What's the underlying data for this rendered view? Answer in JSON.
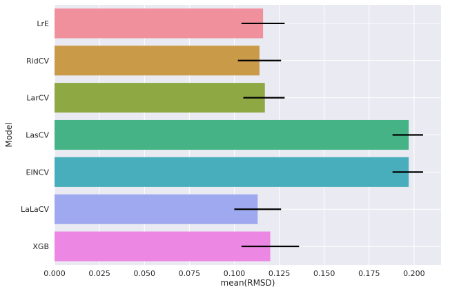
{
  "chart_data": {
    "type": "bar",
    "orientation": "horizontal",
    "title": "",
    "xlabel": "mean(RMSD)",
    "ylabel": "Model",
    "xlim": [
      0.0,
      0.215
    ],
    "xticks": [
      0.0,
      0.025,
      0.05,
      0.075,
      0.1,
      0.125,
      0.15,
      0.175,
      0.2
    ],
    "xtick_labels": [
      "0.000",
      "0.025",
      "0.050",
      "0.075",
      "0.100",
      "0.125",
      "0.150",
      "0.175",
      "0.200"
    ],
    "grid": true,
    "style": "seaborn-darkgrid",
    "background_color": "#eaeaf2",
    "grid_color": "#ffffff",
    "errorbar_color": "#000000",
    "categories": [
      "LrE",
      "RidCV",
      "LarCV",
      "LasCV",
      "ElNCV",
      "LaLaCV",
      "XGB"
    ],
    "values": [
      0.116,
      0.114,
      0.117,
      0.197,
      0.197,
      0.113,
      0.12
    ],
    "error_low": [
      0.104,
      0.102,
      0.105,
      0.188,
      0.188,
      0.1,
      0.104
    ],
    "error_high": [
      0.128,
      0.126,
      0.128,
      0.205,
      0.205,
      0.126,
      0.136
    ],
    "colors": [
      "#f0909c",
      "#c99a48",
      "#8ea944",
      "#46b386",
      "#49aebb",
      "#9fa9ef",
      "#ec88e3"
    ]
  }
}
